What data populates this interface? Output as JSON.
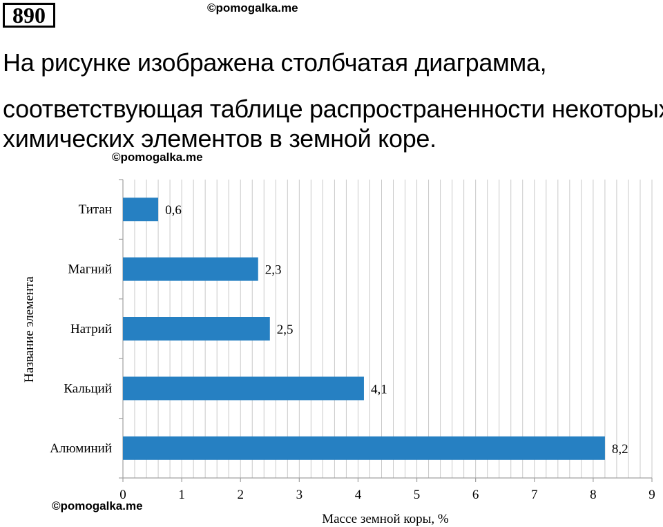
{
  "problem": {
    "number": "890",
    "text_lines": [
      "На рисунке изображена столбчатая диаграмма,",
      "соответствующая таблице распространенности некоторых",
      "химических элементов в земной коре."
    ]
  },
  "watermarks": [
    "©pomogalka.me",
    "©pomogalka.me",
    "©pomogalka.me"
  ],
  "colors": {
    "bar": "#2680c2",
    "grid": "#c9c9c9",
    "axis": "#a0a0a0"
  },
  "chart_data": {
    "type": "bar",
    "orientation": "horizontal",
    "categories": [
      "Титан",
      "Магний",
      "Натрий",
      "Кальций",
      "Алюминий"
    ],
    "values": [
      0.6,
      2.3,
      2.5,
      4.1,
      8.2
    ],
    "value_labels": [
      "0,6",
      "2,3",
      "2,5",
      "4,1",
      "8,2"
    ],
    "xlabel": "Массе земной коры, %",
    "ylabel": "Название элемента",
    "xlim": [
      0,
      9
    ],
    "xticks": [
      "0",
      "1",
      "2",
      "3",
      "4",
      "5",
      "6",
      "7",
      "8",
      "9"
    ],
    "grid": true,
    "legend": "none"
  }
}
